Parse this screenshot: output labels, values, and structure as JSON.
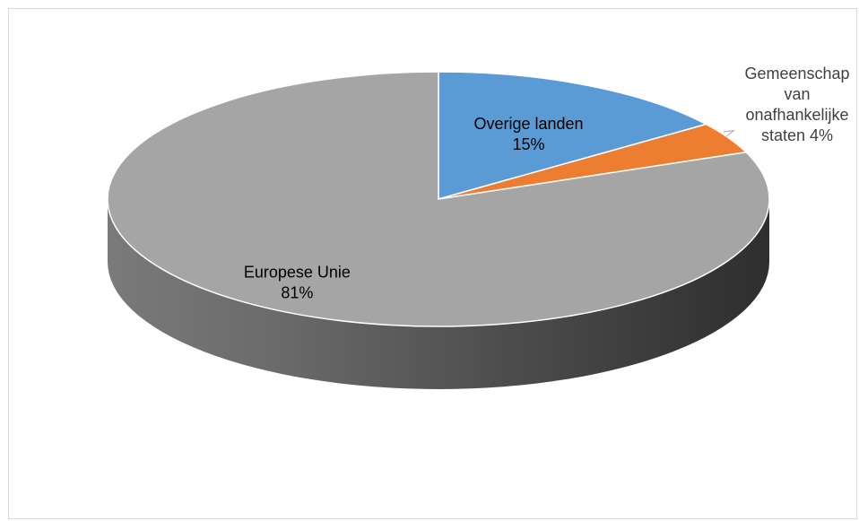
{
  "chart_data": {
    "type": "pie",
    "variant": "3d",
    "title": "",
    "slices": [
      {
        "label": "Overige landen",
        "value": 15,
        "value_text": "15%",
        "color": "#5b9bd5",
        "label_position": "inside"
      },
      {
        "label": "Gemeenschap van onafhankelijke staten",
        "label_lines": [
          "Gemeenschap",
          "van",
          "onafhankelijke",
          "staten 4%"
        ],
        "value": 4,
        "value_text": "4%",
        "color": "#ed7d31",
        "label_position": "outside"
      },
      {
        "label": "Europese Unie",
        "value": 81,
        "value_text": "81%",
        "color": "#a5a5a5",
        "label_position": "inside"
      }
    ],
    "legend": "none"
  }
}
